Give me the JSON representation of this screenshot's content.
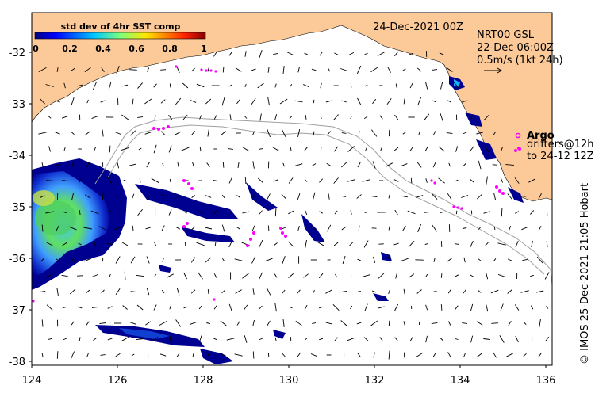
{
  "map": {
    "date_title": "24-Dec-2021 00Z",
    "product": "NRT00 GSL",
    "valid_time": "22-Dec 06:00Z",
    "scale_label": "0.5m/s (1kt 24h)",
    "credit": "© IMOS 25-Dec-2021 21:05 Hobart",
    "argo_label": "Argo",
    "drifters_line1": "drifters@12h",
    "drifters_line2": "to 24-12 12Z",
    "colorbar": {
      "title": "std dev of 4hr SST comp",
      "ticks": [
        "0",
        "0.2",
        "0.4",
        "0.6",
        "0.8",
        "1"
      ]
    },
    "lat_ticks": [
      "-32",
      "-33",
      "-34",
      "-35",
      "-36",
      "-37",
      "-38"
    ],
    "lon_ticks": [
      "124",
      "126",
      "128",
      "130",
      "132",
      "134",
      "136"
    ],
    "colors": {
      "land": "#fcc999",
      "frame": "#000000",
      "argo": "#ff00ff",
      "contour": "#a0a0a0",
      "sst_low": "#000080",
      "sst_high": "#800000"
    }
  }
}
